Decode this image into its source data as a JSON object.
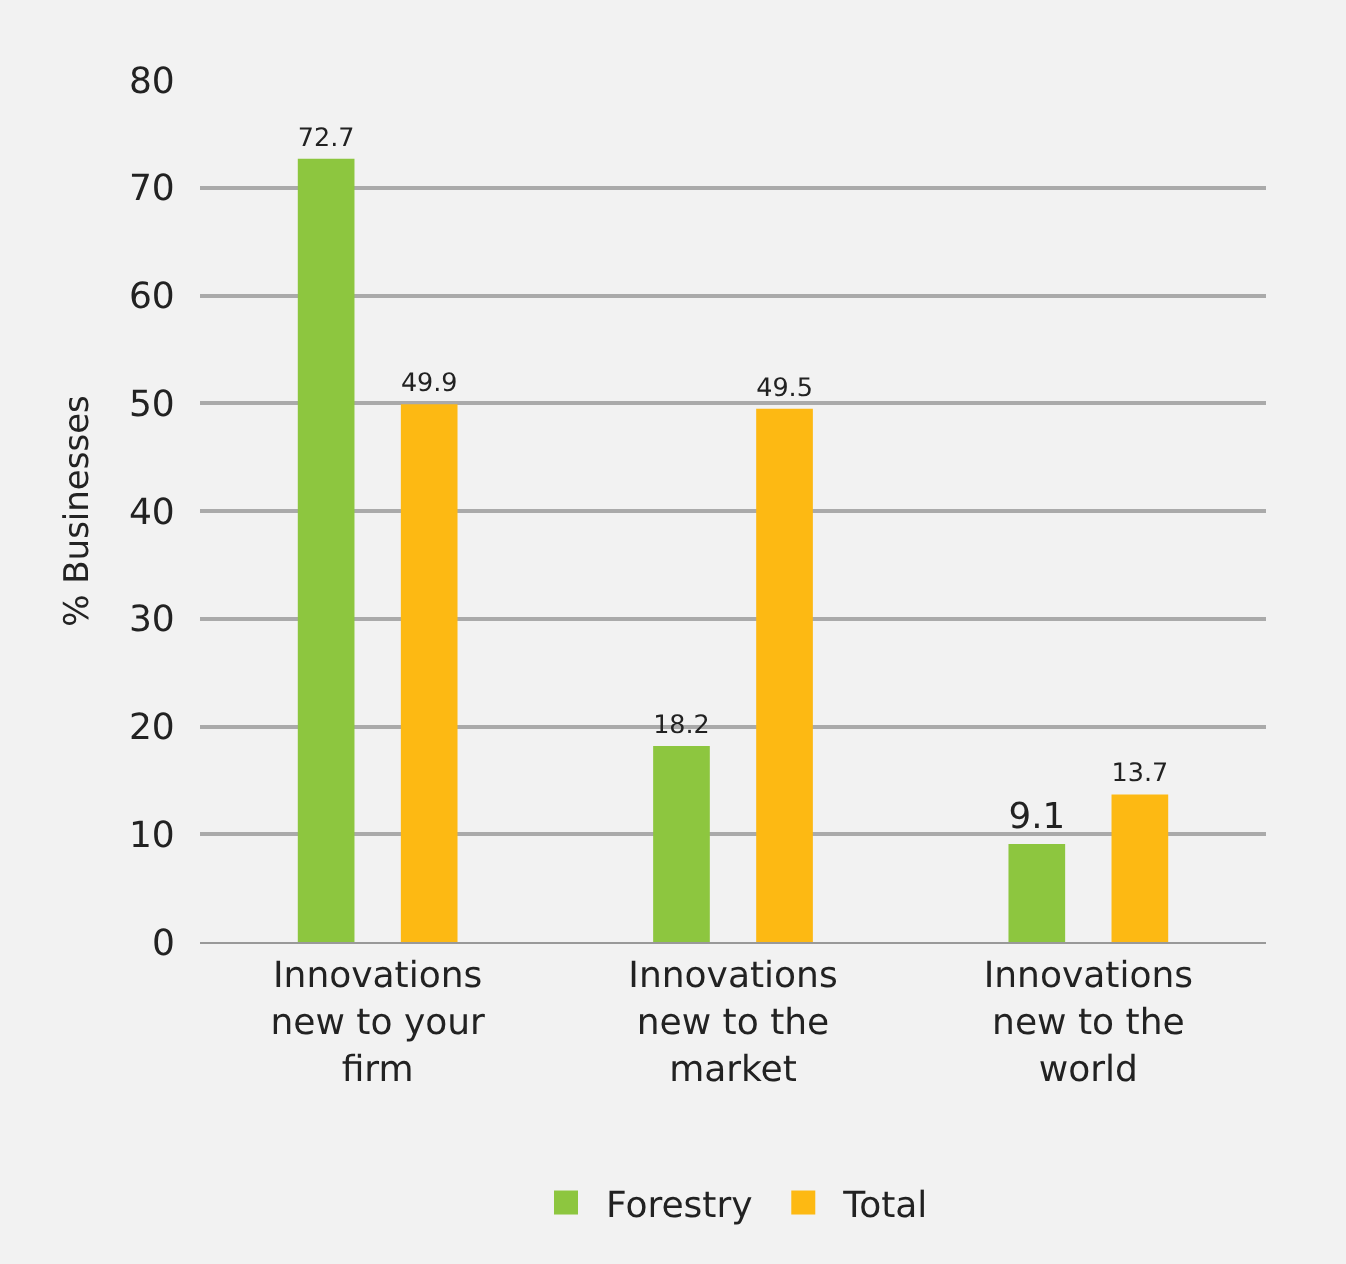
{
  "chart_data": {
    "type": "bar",
    "categories": [
      "Innovations\nnew to your\nfirm",
      "Innovations\nnew to the\nmarket",
      "Innovations\nnew to the\nworld"
    ],
    "series": [
      {
        "name": "Forestry",
        "color": "#8dc63f",
        "values": [
          72.7,
          18.2,
          9.1
        ]
      },
      {
        "name": "Total",
        "color": "#fdb913",
        "values": [
          49.9,
          49.5,
          13.7
        ]
      }
    ],
    "ylabel": "% Businesses",
    "ylim": [
      0,
      80
    ],
    "yticks": [
      0,
      10,
      20,
      30,
      40,
      50,
      60,
      70,
      80
    ],
    "grid": "y",
    "legend": "bottom",
    "data_labels": true
  }
}
